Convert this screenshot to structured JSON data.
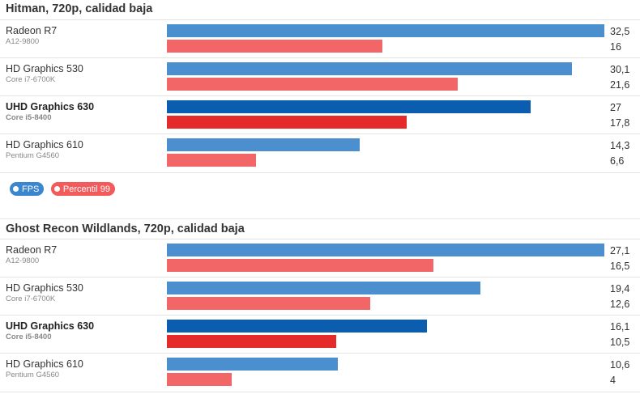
{
  "legend": {
    "fps_label": "FPS",
    "p99_label": "Percentil 99",
    "fps_color": "#4c8fcf",
    "p99_color": "#f26667"
  },
  "chart_data": [
    {
      "type": "bar",
      "orientation": "horizontal",
      "title": "Hitman, 720p, calidad baja",
      "categories": [
        "Radeon R7",
        "HD Graphics 530",
        "UHD Graphics 630",
        "HD Graphics 610"
      ],
      "subcategories": [
        "A12-9800",
        "Core i7-6700K",
        "Core i5-8400",
        "Pentium G4560"
      ],
      "highlighted": "UHD Graphics 630",
      "series": [
        {
          "name": "FPS",
          "values": [
            32.5,
            30.1,
            27,
            14.3
          ],
          "labels": [
            "32,5",
            "30,1",
            "27",
            "14,3"
          ]
        },
        {
          "name": "Percentil 99",
          "values": [
            16,
            21.6,
            17.8,
            6.6
          ],
          "labels": [
            "16",
            "21,6",
            "17,8",
            "6,6"
          ]
        }
      ]
    },
    {
      "type": "bar",
      "orientation": "horizontal",
      "title": "Ghost Recon Wildlands, 720p, calidad baja",
      "categories": [
        "Radeon R7",
        "HD Graphics 530",
        "UHD Graphics 630",
        "HD Graphics 610"
      ],
      "subcategories": [
        "A12-9800",
        "Core i7-6700K",
        "Core i5-8400",
        "Pentium G4560"
      ],
      "highlighted": "UHD Graphics 630",
      "series": [
        {
          "name": "FPS",
          "values": [
            27.1,
            19.4,
            16.1,
            10.6
          ],
          "labels": [
            "27,1",
            "19,4",
            "16,1",
            "10,6"
          ]
        },
        {
          "name": "Percentil 99",
          "values": [
            16.5,
            12.6,
            10.5,
            4
          ],
          "labels": [
            "16,5",
            "12,6",
            "10,5",
            "4"
          ]
        }
      ]
    }
  ]
}
